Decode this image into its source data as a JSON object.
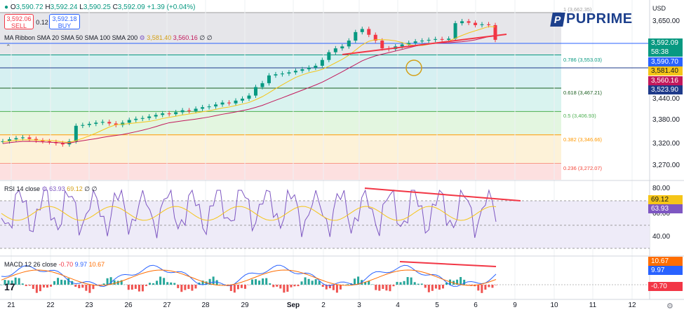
{
  "ohlc": {
    "open_label": "O",
    "open": "3,590.72",
    "high_label": "H",
    "high": "3,592.24",
    "low_label": "L",
    "low": "3,590.25",
    "close_label": "C",
    "close": "3,592.09",
    "change": "+1.39 (+0.04%)"
  },
  "trade": {
    "sell_price": "3,592.06",
    "sell_label": "SELL",
    "spread": "0.12",
    "buy_price": "3,592.18",
    "buy_label": "BUY"
  },
  "ma_legend": {
    "label": "MA Ribbon SMA 20 SMA 50 SMA 100 SMA 200",
    "v1": "3,581.40",
    "v2": "3,560.16",
    "v3": "∅",
    "v4": "∅"
  },
  "rsi_legend": {
    "label": "RSI 14 close",
    "v1": "63.93",
    "v2": "69.12",
    "v3": "∅",
    "v4": "∅"
  },
  "macd_legend": {
    "label": "MACD 12 26 close",
    "v1": "-0.70",
    "v2": "9.97",
    "v3": "10.67"
  },
  "logo": {
    "mark": "P",
    "text": "PUPRIME"
  },
  "currency": "USD",
  "price_axis": {
    "ticks": [
      {
        "text": "3,650.00",
        "y": 3650
      },
      {
        "text": "3,440.00",
        "y": 3440
      },
      {
        "text": "3,380.00",
        "y": 3380
      },
      {
        "text": "3,320.00",
        "y": 3320
      },
      {
        "text": "3,270.00",
        "y": 3270
      }
    ],
    "pills": [
      {
        "text": "3,592.09",
        "bg": "#089981",
        "fg": "#ffffff"
      },
      {
        "text": "58:38",
        "bg": "#089981",
        "fg": "#ffffff"
      },
      {
        "text": "3,590.70",
        "bg": "#2962ff",
        "fg": "#ffffff"
      },
      {
        "text": "3,581.40",
        "bg": "#f5c518",
        "fg": "#131722"
      },
      {
        "text": "3,560.16",
        "bg": "#c2185b",
        "fg": "#ffffff"
      },
      {
        "text": "3,523.90",
        "bg": "#1e3a8a",
        "fg": "#ffffff"
      }
    ]
  },
  "rsi_axis": {
    "ticks": [
      {
        "text": "80.00"
      },
      {
        "text": "60.00"
      },
      {
        "text": "40.00"
      }
    ],
    "pills": [
      {
        "text": "69.12",
        "bg": "#f5c518",
        "fg": "#131722"
      },
      {
        "text": "63.93",
        "bg": "#7e57c2",
        "fg": "#ffffff"
      }
    ]
  },
  "macd_axis": {
    "pills": [
      {
        "text": "10.67",
        "bg": "#ff6d00",
        "fg": "#ffffff"
      },
      {
        "text": "9.97",
        "bg": "#2962ff",
        "fg": "#ffffff"
      },
      {
        "text": "-0.70",
        "bg": "#f23645",
        "fg": "#ffffff"
      }
    ]
  },
  "fib_levels": [
    {
      "label": "1 (3,662.35)",
      "price": 3662.35,
      "color": "#9e9e9e"
    },
    {
      "label": "0.786 (3,553.03)",
      "price": 3553.03,
      "color": "#089981"
    },
    {
      "label": "0.618 (3,467.21)",
      "price": 3467.21,
      "color": "#1b5e20"
    },
    {
      "label": "0.5 (3,406.93)",
      "price": 3406.93,
      "color": "#4caf50"
    },
    {
      "label": "0.382 (3,346.66)",
      "price": 3346.66,
      "color": "#ff9800"
    },
    {
      "label": "0.236 (3,272.07)",
      "price": 3272.07,
      "color": "#f44336"
    }
  ],
  "time_axis": [
    "21",
    "22",
    "23",
    "26",
    "27",
    "28",
    "29",
    "Sep",
    "2",
    "3",
    "4",
    "5",
    "6",
    "9",
    "10",
    "11",
    "12"
  ],
  "chart_data": {
    "type": "candlestick",
    "close_series": [
      3330,
      3335,
      3338,
      3340,
      3336,
      3332,
      3330,
      3328,
      3325,
      3322,
      3330,
      3370,
      3372,
      3375,
      3378,
      3380,
      3376,
      3372,
      3378,
      3385,
      3388,
      3390,
      3394,
      3398,
      3402,
      3400,
      3405,
      3410,
      3408,
      3414,
      3418,
      3420,
      3425,
      3430,
      3428,
      3435,
      3440,
      3448,
      3470,
      3480,
      3500,
      3503,
      3505,
      3508,
      3512,
      3516,
      3520,
      3525,
      3540,
      3560,
      3570,
      3575,
      3590,
      3612,
      3620,
      3605,
      3590,
      3570,
      3568,
      3575,
      3580,
      3584,
      3588,
      3590,
      3592,
      3594,
      3592,
      3595,
      3635,
      3640,
      3636,
      3630,
      3632,
      3630,
      3592
    ],
    "trendlines": [
      {
        "name": "price-resistance",
        "color": "#f23645"
      },
      {
        "name": "rsi-divergence",
        "color": "#f23645"
      },
      {
        "name": "macd-divergence",
        "color": "#f23645"
      }
    ]
  }
}
